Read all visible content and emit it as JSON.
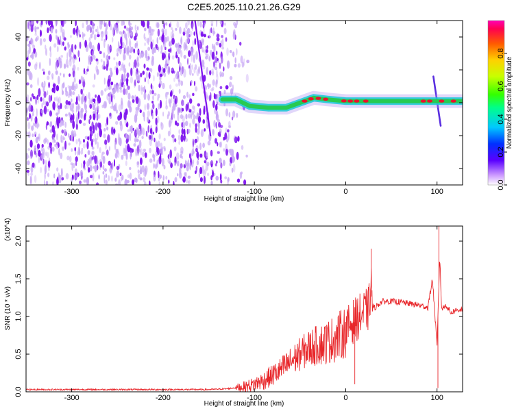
{
  "title": "C2E5.2025.110.21.26.G29",
  "colors": {
    "snr_line": "#e8262a",
    "stripe": "#7d12ee",
    "ridge_core": "#e8142c",
    "ridge_mid": "#27c94a",
    "ridge_outer": "#17c9d6",
    "ridge_halo": "#a98cf0",
    "noise": "#c8a8f5"
  },
  "chart_data": [
    {
      "type": "heatmap",
      "xlabel": "Height of straight line (km)",
      "ylabel": "Frequency (Hz)",
      "xlim": [
        -350,
        128
      ],
      "ylim": [
        -50,
        50
      ],
      "xticks": [
        -300,
        -200,
        -100,
        0,
        100
      ],
      "xtick_labels": [
        "-300",
        "-200",
        "-100",
        "0",
        "100"
      ],
      "yticks": [
        -40,
        -20,
        0,
        20,
        40
      ],
      "ytick_labels": [
        "-40",
        "-20",
        "0",
        "20",
        "40"
      ],
      "colorbar": {
        "label": "Normalized spectral amplitude",
        "range": [
          0,
          1
        ],
        "ticks": [
          0.0,
          0.2,
          0.4,
          0.6,
          0.8
        ],
        "tick_labels": [
          "0.0",
          "0.2",
          "0.4",
          "0.6",
          "0.8"
        ],
        "colormap": "rainbow"
      },
      "noise_region_x": [
        -350,
        -120
      ],
      "ridge": [
        {
          "x": -135,
          "y": 2
        },
        {
          "x": -120,
          "y": 2
        },
        {
          "x": -105,
          "y": -2
        },
        {
          "x": -85,
          "y": -3
        },
        {
          "x": -65,
          "y": -3
        },
        {
          "x": -50,
          "y": 0
        },
        {
          "x": -35,
          "y": 3
        },
        {
          "x": -20,
          "y": 2
        },
        {
          "x": 0,
          "y": 1
        },
        {
          "x": 20,
          "y": 1
        },
        {
          "x": 50,
          "y": 1
        },
        {
          "x": 80,
          "y": 1
        },
        {
          "x": 100,
          "y": 1
        },
        {
          "x": 128,
          "y": 1
        }
      ],
      "diagonal_features": [
        {
          "x": [
            -165,
            -148
          ],
          "y": [
            50,
            -20
          ]
        },
        {
          "x": [
            96,
            104
          ],
          "y": [
            16,
            -14
          ]
        }
      ]
    },
    {
      "type": "line",
      "xlabel": "Height of straight line (km)",
      "ylabel": "SNR (10 * v/v)",
      "y_multiplier": "(x10^4)",
      "xlim": [
        -350,
        128
      ],
      "ylim": [
        0,
        2.2
      ],
      "xticks": [
        -300,
        -200,
        -100,
        0,
        100
      ],
      "xtick_labels": [
        "-300",
        "-200",
        "-100",
        "0",
        "100"
      ],
      "yticks": [
        0.0,
        0.5,
        1.0,
        1.5,
        2.0
      ],
      "ytick_labels": [
        "0.0",
        "0.5",
        "1.0",
        "1.5",
        "2.0"
      ],
      "series": [
        {
          "x": [
            -350,
            -300,
            -250,
            -200,
            -150,
            -130,
            -110,
            -100,
            -90,
            -80,
            -70,
            -60,
            -50,
            -40,
            -30,
            -20,
            -10,
            0,
            5,
            10,
            15,
            20,
            25,
            28,
            30,
            35,
            40,
            50,
            60,
            70,
            80,
            90,
            95,
            100,
            103,
            105,
            110,
            115,
            120,
            128
          ],
          "y": [
            0.03,
            0.03,
            0.03,
            0.03,
            0.03,
            0.04,
            0.07,
            0.1,
            0.15,
            0.22,
            0.3,
            0.4,
            0.5,
            0.58,
            0.62,
            0.66,
            0.72,
            0.8,
            0.9,
            0.95,
            1.0,
            1.05,
            1.1,
            1.4,
            1.1,
            1.15,
            1.2,
            1.2,
            1.19,
            1.17,
            1.15,
            1.12,
            1.5,
            0.6,
            1.8,
            1.1,
            1.15,
            1.05,
            1.08,
            1.1
          ]
        }
      ],
      "spikes": [
        {
          "x": 28,
          "y": 1.9
        },
        {
          "x": 102,
          "y": 2.2
        },
        {
          "x": 101,
          "y": 0.05
        },
        {
          "x": 10,
          "y": 0.1
        }
      ]
    }
  ]
}
